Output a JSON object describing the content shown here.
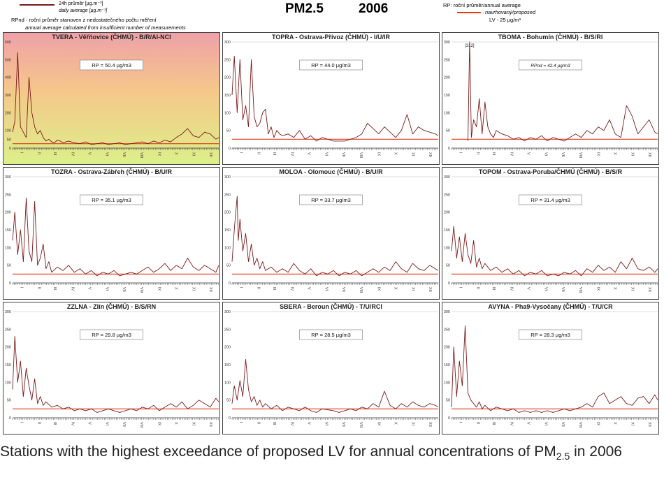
{
  "header": {
    "title": "PM2.5",
    "year": "2006",
    "legend_left": {
      "line1": "24h průměr [µg.m⁻³]",
      "line2": "daily average [µg.m⁻³]",
      "line3": "RPnd · roční průměr stanoven z nedostatečného počtu měření",
      "line4": "annual average calculated from insufficient number of measurements"
    },
    "legend_right": {
      "line1": "RP: roční průměr/annual average",
      "line2": "navrhovaný/proposed",
      "line3": "LV - 25 µg/m³"
    }
  },
  "caption": {
    "text": "Stations with the highest exceedance of proposed LV for annual concentrations of PM",
    "sub": "2.5",
    "suffix": " in 2006"
  },
  "colors": {
    "series": "#7a1a1a",
    "limit_line": "#e03a1a",
    "frame": "#444444",
    "grid": "#bbbbbb"
  },
  "chart_data": [
    {
      "type": "line",
      "title": "TVERA - Věřňovice (ČHMÚ) - B/R/AI-NCI",
      "annotation": "RP = 50.4 µg/m3",
      "ylim": [
        0,
        600
      ],
      "yticks": [
        0,
        50,
        100,
        200,
        300,
        400,
        500,
        600
      ],
      "months": [
        "I",
        "II",
        "III",
        "IV",
        "V",
        "VI",
        "VII",
        "VIII",
        "IX",
        "X",
        "XI",
        "XII"
      ],
      "limit": 25,
      "highlight": true,
      "x": [
        1,
        5,
        10,
        15,
        20,
        25,
        30,
        35,
        40,
        45,
        50,
        55,
        60,
        65,
        70,
        75,
        80,
        85,
        90,
        95,
        100,
        110,
        120,
        130,
        140,
        150,
        160,
        170,
        180,
        190,
        200,
        210,
        220,
        230,
        240,
        250,
        260,
        270,
        280,
        290,
        300,
        310,
        320,
        330,
        340,
        350,
        360,
        365
      ],
      "values": [
        90,
        150,
        540,
        120,
        90,
        60,
        400,
        200,
        120,
        80,
        100,
        60,
        40,
        50,
        35,
        30,
        45,
        40,
        30,
        35,
        40,
        30,
        25,
        35,
        20,
        25,
        30,
        20,
        25,
        30,
        20,
        25,
        30,
        35,
        25,
        40,
        30,
        45,
        35,
        60,
        80,
        110,
        70,
        60,
        90,
        80,
        50,
        60
      ]
    },
    {
      "type": "line",
      "title": "TOPRA - Ostrava-Přívoz (ČHMÚ) - I/U/IR",
      "annotation": "RP = 44.0 µg/m3",
      "ylim": [
        0,
        300
      ],
      "yticks": [
        0,
        50,
        100,
        150,
        200,
        250,
        300
      ],
      "months": [
        "I",
        "II",
        "III",
        "IV",
        "V",
        "VI",
        "VII",
        "VIII",
        "IX",
        "X",
        "XI",
        "XII"
      ],
      "limit": 25,
      "x": [
        1,
        5,
        10,
        15,
        20,
        25,
        30,
        35,
        40,
        45,
        50,
        55,
        60,
        65,
        70,
        75,
        80,
        85,
        90,
        100,
        110,
        120,
        130,
        140,
        150,
        160,
        170,
        180,
        200,
        210,
        220,
        230,
        240,
        250,
        260,
        270,
        280,
        290,
        300,
        310,
        320,
        330,
        340,
        350,
        360,
        365
      ],
      "values": [
        150,
        260,
        100,
        250,
        80,
        120,
        60,
        250,
        90,
        60,
        70,
        100,
        110,
        40,
        60,
        30,
        50,
        40,
        35,
        40,
        30,
        50,
        25,
        35,
        20,
        30,
        25,
        20,
        20,
        25,
        30,
        40,
        70,
        55,
        40,
        60,
        45,
        30,
        50,
        95,
        40,
        60,
        50,
        45,
        40,
        35
      ]
    },
    {
      "type": "line",
      "title": "TBOMA - Bohumín (ČHMÚ) - B/S/RI",
      "annotation": "RPnd = 42.4 µg/m3",
      "peak_label": "[312]",
      "ylim": [
        0,
        300
      ],
      "yticks": [
        0,
        50,
        100,
        150,
        200,
        250,
        300
      ],
      "months": [
        "I",
        "II",
        "III",
        "IV",
        "V",
        "VI",
        "VII",
        "VIII",
        "IX",
        "X",
        "XI",
        "XII"
      ],
      "limit": 25,
      "x": [
        30,
        33,
        36,
        40,
        45,
        50,
        55,
        60,
        65,
        70,
        75,
        80,
        90,
        100,
        110,
        120,
        130,
        140,
        150,
        160,
        170,
        180,
        190,
        200,
        210,
        220,
        230,
        240,
        250,
        260,
        270,
        280,
        290,
        300,
        310,
        320,
        330,
        340,
        350,
        360,
        365
      ],
      "values": [
        20,
        300,
        30,
        80,
        60,
        140,
        40,
        130,
        60,
        40,
        30,
        50,
        40,
        35,
        25,
        30,
        20,
        30,
        25,
        35,
        20,
        30,
        25,
        20,
        30,
        40,
        30,
        50,
        40,
        60,
        50,
        80,
        40,
        30,
        120,
        90,
        40,
        60,
        80,
        45,
        40
      ]
    },
    {
      "type": "line",
      "title": "TOZRA - Ostrava-Zábřeh (ČHMÚ) - B/U/R",
      "annotation": "RP = 35.1 µg/m3",
      "ylim": [
        0,
        300
      ],
      "yticks": [
        0,
        50,
        100,
        150,
        200,
        250,
        300
      ],
      "months": [
        "I",
        "II",
        "III",
        "IV",
        "V",
        "VI",
        "VII",
        "VIII",
        "IX",
        "X",
        "XI",
        "XII"
      ],
      "limit": 25,
      "x": [
        1,
        5,
        10,
        15,
        20,
        25,
        30,
        35,
        40,
        45,
        50,
        55,
        60,
        65,
        70,
        80,
        90,
        100,
        110,
        120,
        130,
        140,
        150,
        160,
        170,
        180,
        190,
        200,
        210,
        220,
        230,
        240,
        250,
        260,
        270,
        280,
        290,
        300,
        310,
        320,
        330,
        340,
        350,
        360,
        365
      ],
      "values": [
        120,
        200,
        80,
        150,
        60,
        240,
        90,
        60,
        230,
        50,
        70,
        110,
        40,
        60,
        30,
        45,
        35,
        50,
        30,
        40,
        25,
        35,
        20,
        30,
        25,
        35,
        20,
        25,
        30,
        25,
        35,
        45,
        30,
        40,
        55,
        35,
        50,
        40,
        70,
        45,
        35,
        50,
        40,
        30,
        50
      ]
    },
    {
      "type": "line",
      "title": "MOLOA - Olomouc (ČHMÚ) - B/U/R",
      "annotation": "RP = 33.7 µg/m3",
      "ylim": [
        0,
        300
      ],
      "yticks": [
        0,
        50,
        100,
        150,
        200,
        250,
        300
      ],
      "months": [
        "I",
        "II",
        "III",
        "IV",
        "V",
        "VI",
        "VII",
        "VIII",
        "IX",
        "X",
        "XI",
        "XII"
      ],
      "limit": 25,
      "x": [
        1,
        5,
        10,
        12,
        15,
        20,
        25,
        30,
        35,
        40,
        45,
        50,
        55,
        60,
        70,
        80,
        90,
        100,
        110,
        120,
        130,
        140,
        150,
        160,
        170,
        180,
        190,
        200,
        210,
        220,
        230,
        240,
        250,
        260,
        270,
        280,
        290,
        300,
        310,
        320,
        330,
        340,
        350,
        360,
        365
      ],
      "values": [
        60,
        150,
        245,
        120,
        180,
        90,
        140,
        60,
        110,
        50,
        70,
        40,
        60,
        35,
        45,
        30,
        40,
        30,
        55,
        35,
        25,
        40,
        20,
        30,
        25,
        35,
        20,
        30,
        25,
        35,
        20,
        30,
        40,
        30,
        45,
        35,
        60,
        40,
        30,
        55,
        40,
        35,
        50,
        40,
        35
      ]
    },
    {
      "type": "line",
      "title": "TOPOM - Ostrava-Poruba/ČHMÚ (ČHMÚ) - B/S/R",
      "annotation": "RP = 31.4 µg/m3",
      "ylim": [
        0,
        300
      ],
      "yticks": [
        0,
        50,
        100,
        150,
        200,
        250,
        300
      ],
      "months": [
        "I",
        "II",
        "III",
        "IV",
        "V",
        "VI",
        "VII",
        "VIII",
        "IX",
        "X",
        "XI",
        "XII"
      ],
      "limit": 25,
      "x": [
        1,
        5,
        10,
        15,
        20,
        25,
        30,
        35,
        40,
        45,
        50,
        55,
        60,
        70,
        80,
        90,
        100,
        110,
        120,
        130,
        140,
        150,
        160,
        170,
        180,
        190,
        200,
        210,
        220,
        230,
        240,
        250,
        260,
        270,
        280,
        290,
        300,
        310,
        320,
        330,
        340,
        350,
        360,
        365
      ],
      "values": [
        90,
        160,
        70,
        130,
        60,
        140,
        80,
        55,
        120,
        45,
        70,
        40,
        55,
        35,
        45,
        30,
        40,
        25,
        35,
        20,
        30,
        25,
        35,
        20,
        25,
        20,
        30,
        25,
        35,
        20,
        40,
        30,
        50,
        35,
        45,
        30,
        60,
        40,
        70,
        40,
        35,
        45,
        30,
        40
      ]
    },
    {
      "type": "line",
      "title": "ZZLNA - Zlín (ČHMÚ) - B/S/RN",
      "annotation": "RP = 29.8 µg/m3",
      "ylim": [
        0,
        300
      ],
      "yticks": [
        0,
        50,
        100,
        150,
        200,
        250,
        300
      ],
      "months": [
        "I",
        "II",
        "III",
        "IV",
        "V",
        "VI",
        "VII",
        "VIII",
        "IX",
        "X",
        "XI",
        "XII"
      ],
      "limit": 25,
      "x": [
        1,
        5,
        10,
        15,
        20,
        25,
        30,
        35,
        40,
        45,
        50,
        55,
        60,
        70,
        80,
        90,
        100,
        110,
        120,
        130,
        140,
        150,
        160,
        170,
        180,
        190,
        200,
        210,
        220,
        230,
        240,
        250,
        260,
        270,
        280,
        290,
        300,
        310,
        320,
        330,
        340,
        350,
        360,
        365
      ],
      "values": [
        80,
        230,
        100,
        160,
        60,
        140,
        90,
        50,
        110,
        40,
        60,
        35,
        45,
        30,
        35,
        25,
        30,
        20,
        25,
        20,
        25,
        15,
        20,
        25,
        20,
        15,
        20,
        25,
        20,
        30,
        25,
        35,
        20,
        30,
        40,
        30,
        45,
        25,
        35,
        50,
        40,
        30,
        55,
        45
      ]
    },
    {
      "type": "line",
      "title": "SBERA - Beroun (ČHMÚ) - T/U/RCI",
      "annotation": "RP = 28.5 µg/m3",
      "ylim": [
        0,
        300
      ],
      "yticks": [
        0,
        50,
        100,
        150,
        200,
        250,
        300
      ],
      "months": [
        "I",
        "II",
        "III",
        "IV",
        "V",
        "VI",
        "VII",
        "VIII",
        "IX",
        "X",
        "XI",
        "XII"
      ],
      "limit": 25,
      "x": [
        1,
        5,
        10,
        15,
        20,
        25,
        30,
        35,
        40,
        45,
        50,
        55,
        60,
        70,
        80,
        90,
        100,
        110,
        120,
        130,
        140,
        150,
        160,
        180,
        190,
        200,
        210,
        220,
        230,
        240,
        250,
        260,
        270,
        280,
        290,
        300,
        310,
        320,
        330,
        340,
        350,
        360,
        365
      ],
      "values": [
        40,
        90,
        50,
        105,
        60,
        165,
        80,
        45,
        60,
        35,
        50,
        30,
        40,
        25,
        35,
        20,
        30,
        25,
        20,
        30,
        20,
        15,
        25,
        20,
        15,
        20,
        25,
        20,
        30,
        25,
        40,
        30,
        75,
        35,
        25,
        40,
        30,
        45,
        35,
        30,
        40,
        35,
        30
      ]
    },
    {
      "type": "line",
      "title": "AVYNA - Pha9-Vysočany (ČHMÚ) - T/U/CR",
      "annotation": "RP = 28.3 µg/m3",
      "ylim": [
        0,
        300
      ],
      "yticks": [
        0,
        50,
        100,
        150,
        200,
        250,
        300
      ],
      "months": [
        "I",
        "II",
        "III",
        "IV",
        "V",
        "VI",
        "VII",
        "VIII",
        "IX",
        "X",
        "XI",
        "XII"
      ],
      "limit": 25,
      "x": [
        1,
        5,
        10,
        15,
        20,
        25,
        30,
        35,
        40,
        45,
        50,
        55,
        60,
        70,
        80,
        90,
        100,
        110,
        120,
        130,
        140,
        150,
        160,
        170,
        180,
        190,
        200,
        210,
        220,
        230,
        240,
        250,
        260,
        270,
        280,
        290,
        300,
        310,
        320,
        330,
        340,
        350,
        360,
        365
      ],
      "values": [
        30,
        200,
        60,
        160,
        90,
        260,
        70,
        50,
        40,
        30,
        45,
        25,
        35,
        20,
        30,
        25,
        20,
        25,
        15,
        20,
        15,
        20,
        15,
        20,
        15,
        20,
        25,
        20,
        25,
        30,
        40,
        30,
        60,
        70,
        40,
        50,
        60,
        40,
        35,
        55,
        60,
        40,
        65,
        50
      ]
    }
  ]
}
